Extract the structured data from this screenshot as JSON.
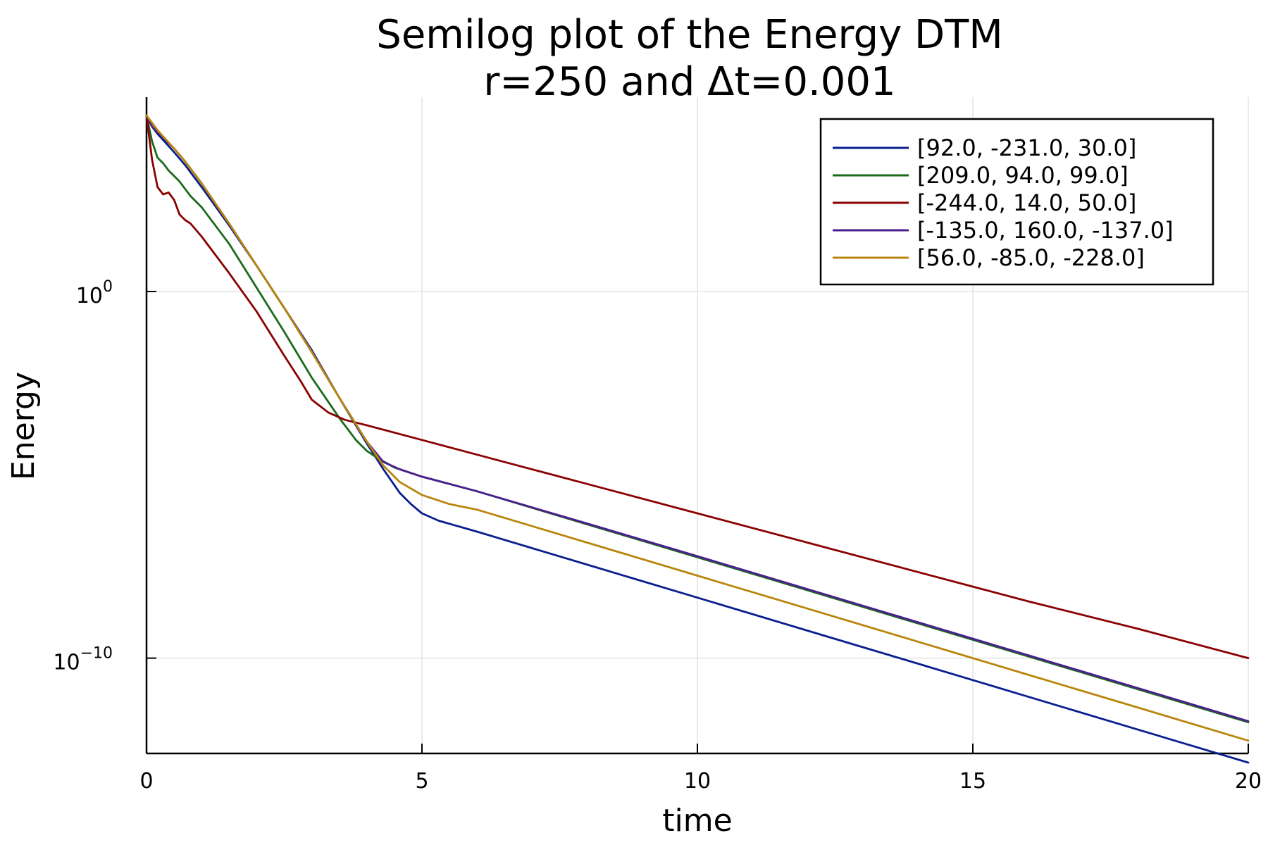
{
  "chart_data": {
    "type": "line",
    "title": "Semilog plot of the Energy DTM",
    "subtitle": "r=250 and Δt=0.001",
    "xlabel": "time",
    "ylabel": "Energy",
    "xlim": [
      0,
      20
    ],
    "ylog": true,
    "ylim_log10": [
      -12.6,
      5.3
    ],
    "grid": true,
    "legend_position": "top-right",
    "x_ticks": [
      {
        "value": 0,
        "label": "0"
      },
      {
        "value": 5,
        "label": "5"
      },
      {
        "value": 10,
        "label": "10"
      },
      {
        "value": 15,
        "label": "15"
      },
      {
        "value": 20,
        "label": "20"
      }
    ],
    "y_ticks": [
      {
        "log10": 0,
        "base": "10",
        "exp": "0"
      },
      {
        "log10": -10,
        "base": "10",
        "exp": "−10"
      }
    ],
    "series": [
      {
        "name": "[92.0, -231.0, 30.0]",
        "color": "#0a1f8f",
        "x": [
          0,
          0.1,
          0.2,
          0.35,
          0.5,
          0.7,
          1.0,
          1.5,
          2.0,
          2.5,
          3.0,
          3.5,
          4.0,
          4.3,
          4.6,
          4.8,
          5.0,
          5.3,
          6,
          8,
          10,
          12,
          14,
          16,
          18,
          20
        ],
        "log10y": [
          4.8,
          4.5,
          4.3,
          4.05,
          3.8,
          3.45,
          2.85,
          1.8,
          0.7,
          -0.45,
          -1.6,
          -2.9,
          -4.15,
          -4.85,
          -5.5,
          -5.8,
          -6.05,
          -6.25,
          -6.55,
          -7.45,
          -8.35,
          -9.25,
          -10.15,
          -11.05,
          -11.95,
          -12.85
        ]
      },
      {
        "name": "[209.0, 94.0, 99.0]",
        "color": "#1a6b1a",
        "x": [
          0,
          0.1,
          0.2,
          0.3,
          0.4,
          0.5,
          0.6,
          0.7,
          0.8,
          1.0,
          1.5,
          2.0,
          2.5,
          3.0,
          3.5,
          3.8,
          4.0,
          4.2,
          4.5,
          5.0,
          6,
          8,
          10,
          12,
          14,
          16,
          18,
          20
        ],
        "log10y": [
          4.8,
          4.1,
          3.65,
          3.5,
          3.3,
          3.15,
          3.0,
          2.8,
          2.6,
          2.3,
          1.3,
          0.1,
          -1.1,
          -2.35,
          -3.45,
          -4.05,
          -4.35,
          -4.55,
          -4.8,
          -5.05,
          -5.45,
          -6.35,
          -7.25,
          -8.15,
          -9.05,
          -9.95,
          -10.85,
          -11.75
        ]
      },
      {
        "name": "[-244.0, 14.0, 50.0]",
        "color": "#8b0000",
        "x": [
          0,
          0.1,
          0.2,
          0.3,
          0.4,
          0.5,
          0.6,
          0.7,
          0.8,
          1.0,
          1.5,
          2.0,
          2.5,
          2.8,
          3.0,
          3.3,
          3.6,
          4,
          5,
          6,
          8,
          10,
          12,
          14,
          16,
          18,
          20
        ],
        "log10y": [
          4.8,
          3.6,
          2.85,
          2.65,
          2.7,
          2.5,
          2.1,
          1.95,
          1.85,
          1.5,
          0.5,
          -0.55,
          -1.75,
          -2.45,
          -2.95,
          -3.3,
          -3.5,
          -3.65,
          -4.05,
          -4.45,
          -5.25,
          -6.05,
          -6.85,
          -7.65,
          -8.45,
          -9.2,
          -10.0
        ]
      },
      {
        "name": "[-135.0, 160.0, -137.0]",
        "color": "#4b1f8f",
        "x": [
          0,
          0.1,
          0.2,
          0.3,
          0.4,
          0.5,
          0.7,
          1.0,
          1.5,
          2.0,
          2.5,
          3.0,
          3.5,
          4.0,
          4.3,
          4.6,
          5.0,
          6,
          8,
          10,
          12,
          14,
          16,
          18,
          20
        ],
        "log10y": [
          4.8,
          4.5,
          4.35,
          4.2,
          4.05,
          3.9,
          3.55,
          2.95,
          1.85,
          0.7,
          -0.45,
          -1.65,
          -2.9,
          -4.1,
          -4.65,
          -4.85,
          -5.05,
          -5.45,
          -6.33,
          -7.22,
          -8.12,
          -9.02,
          -9.92,
          -10.82,
          -11.72
        ]
      },
      {
        "name": "[56.0, -85.0, -228.0]",
        "color": "#b8860b",
        "x": [
          0,
          0.1,
          0.2,
          0.35,
          0.5,
          0.7,
          1.0,
          1.5,
          2.0,
          2.5,
          3.0,
          3.5,
          4.0,
          4.3,
          4.6,
          5.0,
          5.5,
          6,
          8,
          10,
          12,
          14,
          16,
          18,
          20
        ],
        "log10y": [
          4.8,
          4.6,
          4.4,
          4.15,
          3.9,
          3.55,
          2.95,
          1.85,
          0.7,
          -0.45,
          -1.65,
          -2.9,
          -4.1,
          -4.75,
          -5.2,
          -5.55,
          -5.8,
          -5.95,
          -6.85,
          -7.75,
          -8.65,
          -9.55,
          -10.45,
          -11.35,
          -12.25
        ]
      }
    ]
  }
}
